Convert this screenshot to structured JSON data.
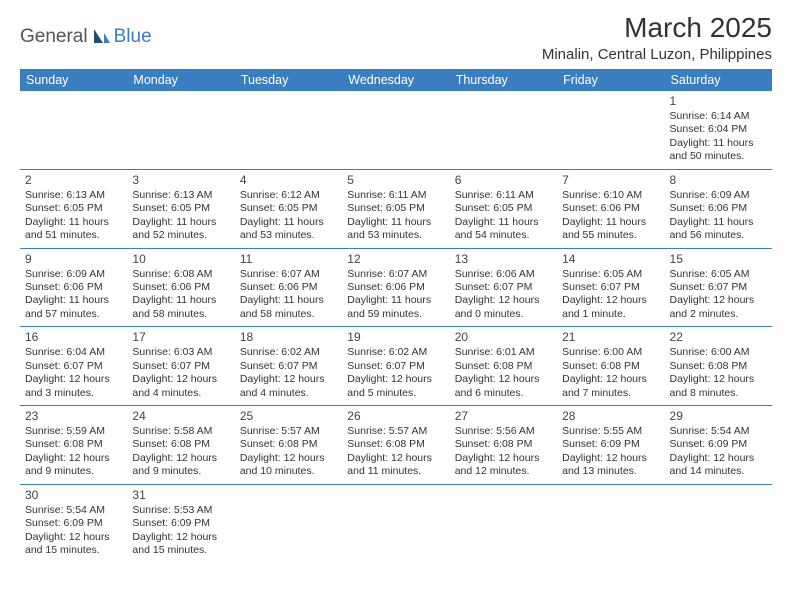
{
  "logo": {
    "text1": "General",
    "text2": "Blue"
  },
  "title": "March 2025",
  "location": "Minalin, Central Luzon, Philippines",
  "header_bg": "#3b7ec0",
  "header_fg": "#ffffff",
  "weekdays": [
    "Sunday",
    "Monday",
    "Tuesday",
    "Wednesday",
    "Thursday",
    "Friday",
    "Saturday"
  ],
  "weeks": [
    [
      null,
      null,
      null,
      null,
      null,
      null,
      {
        "n": "1",
        "sr": "Sunrise: 6:14 AM",
        "ss": "Sunset: 6:04 PM",
        "dl": "Daylight: 11 hours and 50 minutes."
      }
    ],
    [
      {
        "n": "2",
        "sr": "Sunrise: 6:13 AM",
        "ss": "Sunset: 6:05 PM",
        "dl": "Daylight: 11 hours and 51 minutes."
      },
      {
        "n": "3",
        "sr": "Sunrise: 6:13 AM",
        "ss": "Sunset: 6:05 PM",
        "dl": "Daylight: 11 hours and 52 minutes."
      },
      {
        "n": "4",
        "sr": "Sunrise: 6:12 AM",
        "ss": "Sunset: 6:05 PM",
        "dl": "Daylight: 11 hours and 53 minutes."
      },
      {
        "n": "5",
        "sr": "Sunrise: 6:11 AM",
        "ss": "Sunset: 6:05 PM",
        "dl": "Daylight: 11 hours and 53 minutes."
      },
      {
        "n": "6",
        "sr": "Sunrise: 6:11 AM",
        "ss": "Sunset: 6:05 PM",
        "dl": "Daylight: 11 hours and 54 minutes."
      },
      {
        "n": "7",
        "sr": "Sunrise: 6:10 AM",
        "ss": "Sunset: 6:06 PM",
        "dl": "Daylight: 11 hours and 55 minutes."
      },
      {
        "n": "8",
        "sr": "Sunrise: 6:09 AM",
        "ss": "Sunset: 6:06 PM",
        "dl": "Daylight: 11 hours and 56 minutes."
      }
    ],
    [
      {
        "n": "9",
        "sr": "Sunrise: 6:09 AM",
        "ss": "Sunset: 6:06 PM",
        "dl": "Daylight: 11 hours and 57 minutes."
      },
      {
        "n": "10",
        "sr": "Sunrise: 6:08 AM",
        "ss": "Sunset: 6:06 PM",
        "dl": "Daylight: 11 hours and 58 minutes."
      },
      {
        "n": "11",
        "sr": "Sunrise: 6:07 AM",
        "ss": "Sunset: 6:06 PM",
        "dl": "Daylight: 11 hours and 58 minutes."
      },
      {
        "n": "12",
        "sr": "Sunrise: 6:07 AM",
        "ss": "Sunset: 6:06 PM",
        "dl": "Daylight: 11 hours and 59 minutes."
      },
      {
        "n": "13",
        "sr": "Sunrise: 6:06 AM",
        "ss": "Sunset: 6:07 PM",
        "dl": "Daylight: 12 hours and 0 minutes."
      },
      {
        "n": "14",
        "sr": "Sunrise: 6:05 AM",
        "ss": "Sunset: 6:07 PM",
        "dl": "Daylight: 12 hours and 1 minute."
      },
      {
        "n": "15",
        "sr": "Sunrise: 6:05 AM",
        "ss": "Sunset: 6:07 PM",
        "dl": "Daylight: 12 hours and 2 minutes."
      }
    ],
    [
      {
        "n": "16",
        "sr": "Sunrise: 6:04 AM",
        "ss": "Sunset: 6:07 PM",
        "dl": "Daylight: 12 hours and 3 minutes."
      },
      {
        "n": "17",
        "sr": "Sunrise: 6:03 AM",
        "ss": "Sunset: 6:07 PM",
        "dl": "Daylight: 12 hours and 4 minutes."
      },
      {
        "n": "18",
        "sr": "Sunrise: 6:02 AM",
        "ss": "Sunset: 6:07 PM",
        "dl": "Daylight: 12 hours and 4 minutes."
      },
      {
        "n": "19",
        "sr": "Sunrise: 6:02 AM",
        "ss": "Sunset: 6:07 PM",
        "dl": "Daylight: 12 hours and 5 minutes."
      },
      {
        "n": "20",
        "sr": "Sunrise: 6:01 AM",
        "ss": "Sunset: 6:08 PM",
        "dl": "Daylight: 12 hours and 6 minutes."
      },
      {
        "n": "21",
        "sr": "Sunrise: 6:00 AM",
        "ss": "Sunset: 6:08 PM",
        "dl": "Daylight: 12 hours and 7 minutes."
      },
      {
        "n": "22",
        "sr": "Sunrise: 6:00 AM",
        "ss": "Sunset: 6:08 PM",
        "dl": "Daylight: 12 hours and 8 minutes."
      }
    ],
    [
      {
        "n": "23",
        "sr": "Sunrise: 5:59 AM",
        "ss": "Sunset: 6:08 PM",
        "dl": "Daylight: 12 hours and 9 minutes."
      },
      {
        "n": "24",
        "sr": "Sunrise: 5:58 AM",
        "ss": "Sunset: 6:08 PM",
        "dl": "Daylight: 12 hours and 9 minutes."
      },
      {
        "n": "25",
        "sr": "Sunrise: 5:57 AM",
        "ss": "Sunset: 6:08 PM",
        "dl": "Daylight: 12 hours and 10 minutes."
      },
      {
        "n": "26",
        "sr": "Sunrise: 5:57 AM",
        "ss": "Sunset: 6:08 PM",
        "dl": "Daylight: 12 hours and 11 minutes."
      },
      {
        "n": "27",
        "sr": "Sunrise: 5:56 AM",
        "ss": "Sunset: 6:08 PM",
        "dl": "Daylight: 12 hours and 12 minutes."
      },
      {
        "n": "28",
        "sr": "Sunrise: 5:55 AM",
        "ss": "Sunset: 6:09 PM",
        "dl": "Daylight: 12 hours and 13 minutes."
      },
      {
        "n": "29",
        "sr": "Sunrise: 5:54 AM",
        "ss": "Sunset: 6:09 PM",
        "dl": "Daylight: 12 hours and 14 minutes."
      }
    ],
    [
      {
        "n": "30",
        "sr": "Sunrise: 5:54 AM",
        "ss": "Sunset: 6:09 PM",
        "dl": "Daylight: 12 hours and 15 minutes."
      },
      {
        "n": "31",
        "sr": "Sunrise: 5:53 AM",
        "ss": "Sunset: 6:09 PM",
        "dl": "Daylight: 12 hours and 15 minutes."
      },
      null,
      null,
      null,
      null,
      null
    ]
  ]
}
